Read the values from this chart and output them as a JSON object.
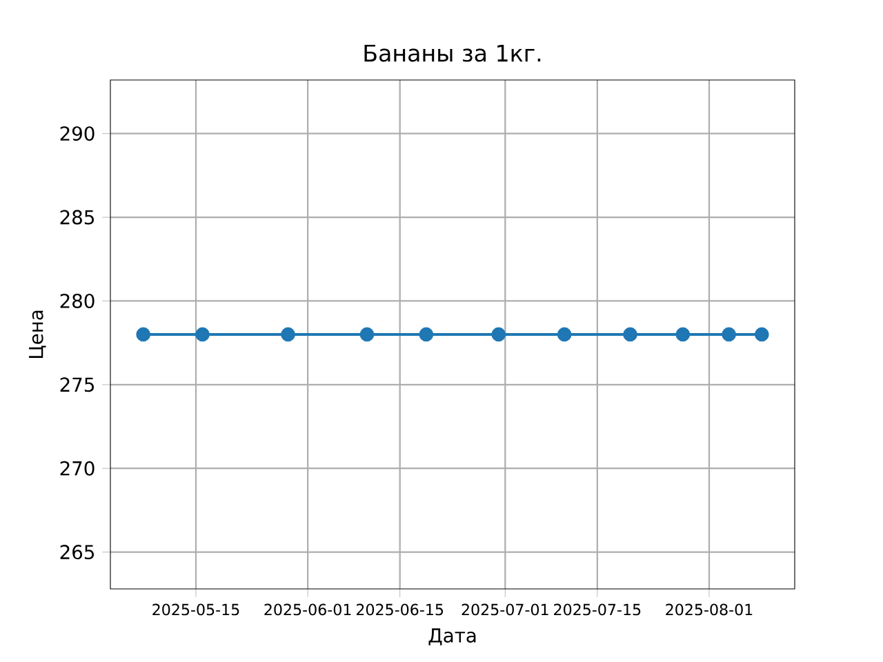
{
  "chart_data": {
    "type": "line",
    "title": "Бананы за 1кг.",
    "xlabel": "Дата",
    "ylabel": "Цена",
    "x": [
      "2025-05-07",
      "2025-05-16",
      "2025-05-29",
      "2025-06-10",
      "2025-06-19",
      "2025-06-30",
      "2025-07-10",
      "2025-07-20",
      "2025-07-28",
      "2025-08-04",
      "2025-08-09"
    ],
    "series": [
      {
        "color": "#1f77b4",
        "values": [
          278,
          278,
          278,
          278,
          278,
          278,
          278,
          278,
          278,
          278,
          278
        ]
      }
    ],
    "xlim": [
      "2025-05-02",
      "2025-08-14"
    ],
    "xticks": [
      "2025-05-15",
      "2025-06-01",
      "2025-06-15",
      "2025-07-01",
      "2025-07-15",
      "2025-08-01"
    ],
    "ylim": [
      262.8,
      293.2
    ],
    "yticks": [
      265,
      270,
      275,
      280,
      285,
      290
    ],
    "grid": true,
    "marker": "circle",
    "line_style": "solid"
  }
}
